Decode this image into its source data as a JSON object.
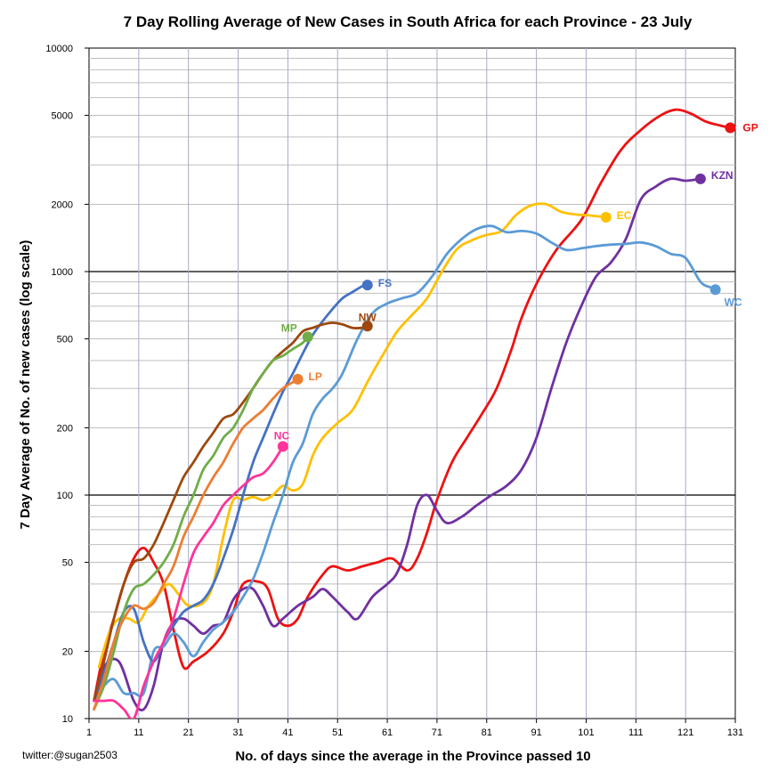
{
  "chart_data": {
    "type": "line",
    "title": "7 Day Rolling Average of New Cases in South Africa for each Province - 23 July",
    "xlabel": "No. of days since the average in the Province passed 10",
    "ylabel": "7 Day Average of No. of new cases (log scale)",
    "yscale": "log",
    "xlim": [
      1,
      131
    ],
    "ylim": [
      10,
      10000
    ],
    "xticks": [
      1,
      11,
      21,
      31,
      41,
      51,
      61,
      71,
      81,
      91,
      101,
      111,
      121,
      131
    ],
    "yticks": [
      10,
      20,
      50,
      100,
      200,
      500,
      1000,
      2000,
      5000,
      10000
    ],
    "grid_decades": [
      100,
      1000
    ],
    "series": [
      {
        "name": "GP",
        "color": "#ee1111",
        "points": [
          [
            2,
            12
          ],
          [
            4,
            20
          ],
          [
            6,
            28
          ],
          [
            8,
            40
          ],
          [
            10,
            52
          ],
          [
            12,
            58
          ],
          [
            14,
            50
          ],
          [
            16,
            40
          ],
          [
            18,
            25
          ],
          [
            20,
            17
          ],
          [
            22,
            18
          ],
          [
            25,
            20
          ],
          [
            28,
            24
          ],
          [
            30,
            30
          ],
          [
            32,
            40
          ],
          [
            35,
            41
          ],
          [
            37,
            38
          ],
          [
            39,
            28
          ],
          [
            41,
            26
          ],
          [
            43,
            28
          ],
          [
            45,
            35
          ],
          [
            48,
            44
          ],
          [
            50,
            48
          ],
          [
            53,
            46
          ],
          [
            56,
            48
          ],
          [
            59,
            50
          ],
          [
            62,
            52
          ],
          [
            65,
            46
          ],
          [
            67,
            52
          ],
          [
            69,
            68
          ],
          [
            71,
            95
          ],
          [
            74,
            140
          ],
          [
            77,
            180
          ],
          [
            80,
            230
          ],
          [
            83,
            300
          ],
          [
            86,
            450
          ],
          [
            88,
            620
          ],
          [
            91,
            880
          ],
          [
            95,
            1250
          ],
          [
            100,
            1700
          ],
          [
            104,
            2500
          ],
          [
            108,
            3500
          ],
          [
            112,
            4300
          ],
          [
            116,
            5000
          ],
          [
            119,
            5300
          ],
          [
            122,
            5100
          ],
          [
            125,
            4700
          ],
          [
            128,
            4500
          ],
          [
            130,
            4400
          ]
        ]
      },
      {
        "name": "KZN",
        "color": "#7030a0",
        "points": [
          [
            2,
            12
          ],
          [
            4,
            17
          ],
          [
            7,
            18
          ],
          [
            10,
            12
          ],
          [
            12,
            11
          ],
          [
            14,
            14
          ],
          [
            16,
            22
          ],
          [
            18,
            27
          ],
          [
            20,
            28
          ],
          [
            22,
            26
          ],
          [
            24,
            24
          ],
          [
            26,
            26
          ],
          [
            28,
            27
          ],
          [
            30,
            34
          ],
          [
            32,
            38
          ],
          [
            34,
            38
          ],
          [
            36,
            32
          ],
          [
            38,
            26
          ],
          [
            40,
            28
          ],
          [
            43,
            32
          ],
          [
            46,
            35
          ],
          [
            48,
            38
          ],
          [
            50,
            35
          ],
          [
            53,
            30
          ],
          [
            55,
            28
          ],
          [
            58,
            35
          ],
          [
            61,
            40
          ],
          [
            63,
            45
          ],
          [
            65,
            60
          ],
          [
            67,
            90
          ],
          [
            69,
            100
          ],
          [
            71,
            85
          ],
          [
            73,
            75
          ],
          [
            76,
            80
          ],
          [
            79,
            90
          ],
          [
            82,
            100
          ],
          [
            85,
            110
          ],
          [
            88,
            130
          ],
          [
            91,
            180
          ],
          [
            94,
            300
          ],
          [
            97,
            480
          ],
          [
            100,
            700
          ],
          [
            103,
            950
          ],
          [
            106,
            1100
          ],
          [
            109,
            1400
          ],
          [
            112,
            2100
          ],
          [
            115,
            2400
          ],
          [
            118,
            2600
          ],
          [
            121,
            2550
          ],
          [
            124,
            2600
          ]
        ]
      },
      {
        "name": "EC",
        "color": "#ffc000",
        "points": [
          [
            3,
            17
          ],
          [
            5,
            24
          ],
          [
            7,
            28
          ],
          [
            9,
            28
          ],
          [
            11,
            27
          ],
          [
            13,
            32
          ],
          [
            15,
            36
          ],
          [
            17,
            40
          ],
          [
            19,
            36
          ],
          [
            21,
            32
          ],
          [
            24,
            33
          ],
          [
            26,
            40
          ],
          [
            28,
            65
          ],
          [
            30,
            95
          ],
          [
            32,
            95
          ],
          [
            34,
            98
          ],
          [
            36,
            95
          ],
          [
            38,
            100
          ],
          [
            40,
            110
          ],
          [
            42,
            105
          ],
          [
            44,
            112
          ],
          [
            46,
            150
          ],
          [
            48,
            180
          ],
          [
            51,
            210
          ],
          [
            54,
            240
          ],
          [
            57,
            320
          ],
          [
            60,
            420
          ],
          [
            63,
            540
          ],
          [
            66,
            640
          ],
          [
            69,
            760
          ],
          [
            72,
            1000
          ],
          [
            75,
            1260
          ],
          [
            78,
            1380
          ],
          [
            81,
            1460
          ],
          [
            84,
            1520
          ],
          [
            87,
            1800
          ],
          [
            90,
            1980
          ],
          [
            93,
            2000
          ],
          [
            96,
            1850
          ],
          [
            99,
            1800
          ],
          [
            102,
            1780
          ],
          [
            105,
            1750
          ]
        ]
      },
      {
        "name": "WC",
        "color": "#5b9bd5",
        "points": [
          [
            2,
            12
          ],
          [
            4,
            14
          ],
          [
            6,
            15
          ],
          [
            8,
            13
          ],
          [
            10,
            13
          ],
          [
            12,
            13
          ],
          [
            14,
            20
          ],
          [
            16,
            21
          ],
          [
            18,
            24
          ],
          [
            20,
            22
          ],
          [
            22,
            19
          ],
          [
            24,
            22
          ],
          [
            26,
            25
          ],
          [
            28,
            27
          ],
          [
            30,
            30
          ],
          [
            32,
            35
          ],
          [
            34,
            42
          ],
          [
            36,
            55
          ],
          [
            38,
            75
          ],
          [
            40,
            100
          ],
          [
            42,
            140
          ],
          [
            44,
            170
          ],
          [
            46,
            230
          ],
          [
            48,
            270
          ],
          [
            50,
            300
          ],
          [
            52,
            350
          ],
          [
            55,
            500
          ],
          [
            58,
            650
          ],
          [
            61,
            720
          ],
          [
            64,
            760
          ],
          [
            67,
            800
          ],
          [
            70,
            950
          ],
          [
            73,
            1200
          ],
          [
            76,
            1400
          ],
          [
            79,
            1550
          ],
          [
            82,
            1600
          ],
          [
            85,
            1500
          ],
          [
            88,
            1520
          ],
          [
            91,
            1480
          ],
          [
            94,
            1350
          ],
          [
            97,
            1250
          ],
          [
            100,
            1270
          ],
          [
            103,
            1300
          ],
          [
            106,
            1320
          ],
          [
            109,
            1330
          ],
          [
            112,
            1350
          ],
          [
            115,
            1300
          ],
          [
            118,
            1200
          ],
          [
            121,
            1150
          ],
          [
            124,
            900
          ],
          [
            126,
            850
          ],
          [
            127,
            830
          ]
        ]
      },
      {
        "name": "FS",
        "color": "#4472c4",
        "points": [
          [
            2,
            12
          ],
          [
            4,
            16
          ],
          [
            6,
            22
          ],
          [
            8,
            30
          ],
          [
            10,
            31
          ],
          [
            12,
            22
          ],
          [
            14,
            18
          ],
          [
            16,
            22
          ],
          [
            18,
            26
          ],
          [
            20,
            30
          ],
          [
            22,
            32
          ],
          [
            24,
            34
          ],
          [
            26,
            40
          ],
          [
            28,
            52
          ],
          [
            30,
            70
          ],
          [
            32,
            100
          ],
          [
            34,
            140
          ],
          [
            36,
            180
          ],
          [
            38,
            230
          ],
          [
            40,
            290
          ],
          [
            42,
            350
          ],
          [
            44,
            430
          ],
          [
            46,
            520
          ],
          [
            48,
            600
          ],
          [
            50,
            680
          ],
          [
            52,
            760
          ],
          [
            54,
            810
          ],
          [
            56,
            860
          ],
          [
            57,
            870
          ]
        ]
      },
      {
        "name": "NW",
        "color": "#9e480e",
        "points": [
          [
            2,
            12
          ],
          [
            4,
            18
          ],
          [
            6,
            28
          ],
          [
            8,
            40
          ],
          [
            10,
            50
          ],
          [
            12,
            52
          ],
          [
            14,
            60
          ],
          [
            16,
            75
          ],
          [
            18,
            95
          ],
          [
            20,
            120
          ],
          [
            22,
            140
          ],
          [
            24,
            165
          ],
          [
            26,
            190
          ],
          [
            28,
            220
          ],
          [
            30,
            230
          ],
          [
            32,
            260
          ],
          [
            34,
            300
          ],
          [
            36,
            350
          ],
          [
            38,
            400
          ],
          [
            40,
            440
          ],
          [
            42,
            480
          ],
          [
            44,
            540
          ],
          [
            46,
            560
          ],
          [
            48,
            580
          ],
          [
            50,
            590
          ],
          [
            52,
            580
          ],
          [
            54,
            560
          ],
          [
            56,
            560
          ],
          [
            57,
            570
          ]
        ]
      },
      {
        "name": "MP",
        "color": "#70ad47",
        "points": [
          [
            2,
            11
          ],
          [
            4,
            14
          ],
          [
            6,
            20
          ],
          [
            8,
            30
          ],
          [
            10,
            38
          ],
          [
            12,
            40
          ],
          [
            14,
            44
          ],
          [
            16,
            50
          ],
          [
            18,
            60
          ],
          [
            20,
            80
          ],
          [
            22,
            100
          ],
          [
            24,
            130
          ],
          [
            26,
            150
          ],
          [
            28,
            180
          ],
          [
            30,
            200
          ],
          [
            32,
            240
          ],
          [
            34,
            300
          ],
          [
            36,
            350
          ],
          [
            38,
            400
          ],
          [
            40,
            420
          ],
          [
            42,
            450
          ],
          [
            44,
            480
          ],
          [
            45,
            510
          ]
        ]
      },
      {
        "name": "LP",
        "color": "#ed7d31",
        "points": [
          [
            2,
            11
          ],
          [
            4,
            15
          ],
          [
            6,
            22
          ],
          [
            8,
            28
          ],
          [
            10,
            32
          ],
          [
            12,
            31
          ],
          [
            14,
            33
          ],
          [
            16,
            40
          ],
          [
            18,
            48
          ],
          [
            20,
            65
          ],
          [
            22,
            80
          ],
          [
            24,
            100
          ],
          [
            26,
            120
          ],
          [
            28,
            140
          ],
          [
            30,
            170
          ],
          [
            32,
            200
          ],
          [
            34,
            220
          ],
          [
            36,
            240
          ],
          [
            38,
            270
          ],
          [
            40,
            300
          ],
          [
            42,
            320
          ],
          [
            43,
            330
          ]
        ]
      },
      {
        "name": "NC",
        "color": "#ff3399",
        "points": [
          [
            2,
            12
          ],
          [
            4,
            12
          ],
          [
            6,
            12
          ],
          [
            8,
            11
          ],
          [
            10,
            10
          ],
          [
            12,
            14
          ],
          [
            14,
            18
          ],
          [
            16,
            22
          ],
          [
            18,
            28
          ],
          [
            20,
            40
          ],
          [
            22,
            55
          ],
          [
            24,
            65
          ],
          [
            26,
            75
          ],
          [
            28,
            90
          ],
          [
            30,
            100
          ],
          [
            32,
            110
          ],
          [
            34,
            120
          ],
          [
            36,
            125
          ],
          [
            38,
            140
          ],
          [
            40,
            165
          ]
        ]
      }
    ]
  },
  "credit": "twitter:@sugan2503"
}
